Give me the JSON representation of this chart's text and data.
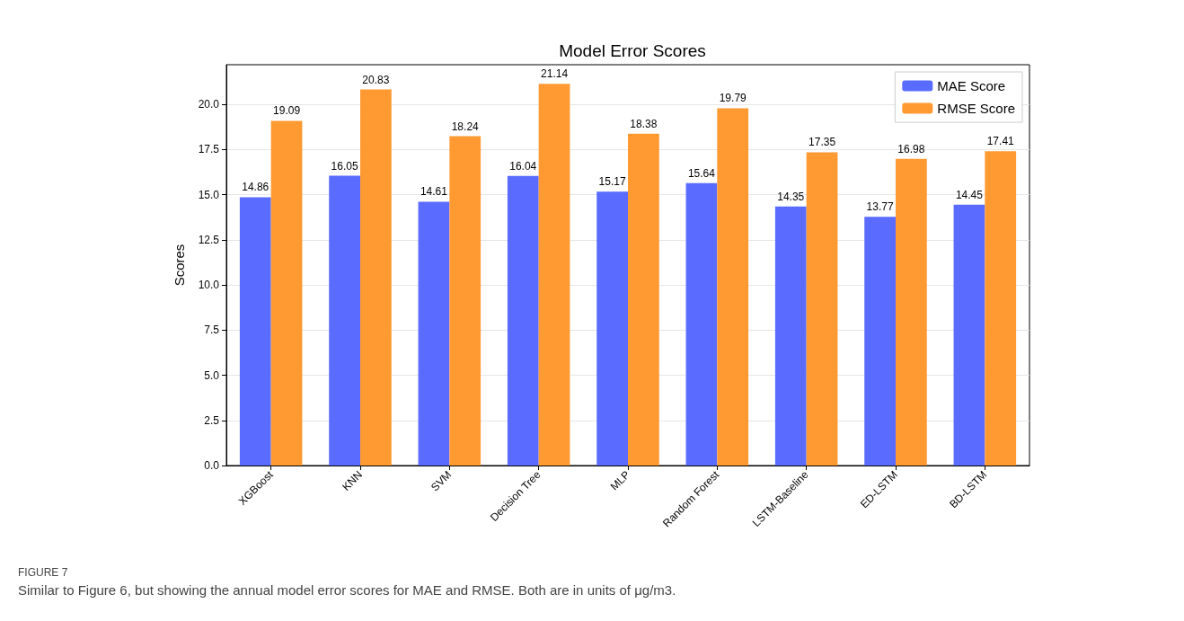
{
  "chart_data": {
    "type": "bar",
    "title": "Model Error Scores",
    "ylabel": "Scores",
    "categories": [
      "XGBoost",
      "KNN",
      "SVM",
      "Decision Tree",
      "MLP",
      "Random Forest",
      "LSTM-Baseline",
      "ED-LSTM",
      "BD-LSTM"
    ],
    "series": [
      {
        "name": "MAE Score",
        "color": "#5a6bff",
        "values": [
          14.86,
          16.05,
          14.61,
          16.04,
          15.17,
          15.64,
          14.35,
          13.77,
          14.45
        ]
      },
      {
        "name": "RMSE Score",
        "color": "#ff9a33",
        "values": [
          19.09,
          20.83,
          18.24,
          21.14,
          18.38,
          19.79,
          17.35,
          16.98,
          17.41
        ]
      }
    ],
    "ylim": [
      0,
      22.2
    ],
    "yticks": [
      {
        "value": 0,
        "label": "0.0"
      },
      {
        "value": 2.5,
        "label": "2.5"
      },
      {
        "value": 5,
        "label": "5.0"
      },
      {
        "value": 7.5,
        "label": "7.5"
      },
      {
        "value": 10,
        "label": "10.0"
      },
      {
        "value": 12.5,
        "label": "12.5"
      },
      {
        "value": 15,
        "label": "15.0"
      },
      {
        "value": 17.5,
        "label": "17.5"
      },
      {
        "value": 20,
        "label": "20.0"
      }
    ],
    "grid": "y",
    "legend": "top right",
    "data_labels": true,
    "annotations": [
      "FIGURE 7",
      "Similar to Figure 6, but showing the annual model error scores for MAE and RMSE. Both are in units of μg/m3."
    ]
  }
}
